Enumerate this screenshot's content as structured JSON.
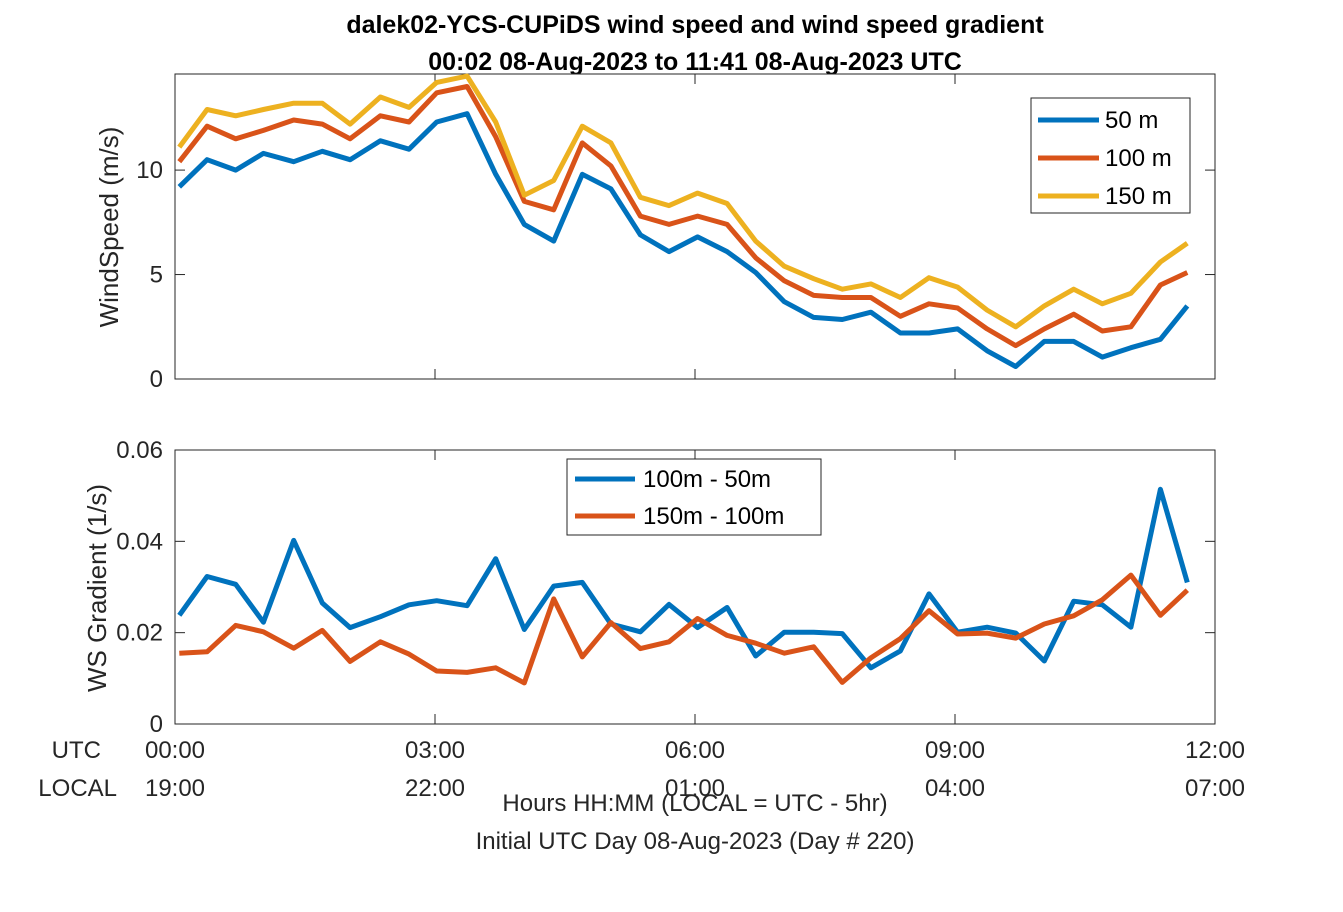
{
  "figure": {
    "title_line1": "dalek02-YCS-CUPiDS  wind speed and wind speed gradient",
    "title_line2": "00:02 08-Aug-2023 to 11:41 08-Aug-2023  UTC",
    "xlabel_line1": "Hours HH:MM  (LOCAL = UTC - 5hr)",
    "xlabel_line2": "Initial UTC Day 08-Aug-2023 (Day # 220)",
    "row_label_utc": "UTC",
    "row_label_local": "LOCAL"
  },
  "colors": {
    "series1": "#0072BD",
    "series2": "#D95319",
    "series3": "#EDB120",
    "axis": "#262626"
  },
  "chart_data": [
    {
      "type": "line",
      "title": "",
      "ylabel": "WindSpeed (m/s)",
      "xlabel": "",
      "xlim": [
        0,
        12
      ],
      "ylim": [
        0,
        14.6
      ],
      "x_ticks": [
        0,
        3,
        6,
        9,
        12
      ],
      "x_tick_labels_utc": [
        "00:00",
        "03:00",
        "06:00",
        "09:00",
        "12:00"
      ],
      "x_tick_labels_local": [
        "19:00",
        "22:00",
        "01:00",
        "04:00",
        "07:00"
      ],
      "y_ticks": [
        0,
        5,
        10
      ],
      "y_tick_labels": [
        "0",
        "5",
        "10"
      ],
      "grid": false,
      "legend_position": "top-right",
      "x": [
        0.05,
        0.37,
        0.7,
        1.02,
        1.37,
        1.7,
        2.02,
        2.37,
        2.7,
        3.02,
        3.37,
        3.7,
        4.03,
        4.37,
        4.7,
        5.03,
        5.37,
        5.7,
        6.03,
        6.37,
        6.7,
        7.03,
        7.37,
        7.7,
        8.03,
        8.37,
        8.7,
        9.03,
        9.37,
        9.7,
        10.03,
        10.37,
        10.7,
        11.03,
        11.37,
        11.68
      ],
      "series": [
        {
          "name": "50 m",
          "color": "#0072BD",
          "values": [
            9.2,
            10.5,
            10.0,
            10.8,
            10.4,
            10.9,
            10.5,
            11.4,
            11.0,
            12.3,
            12.7,
            9.8,
            7.4,
            6.6,
            9.8,
            9.1,
            6.9,
            6.1,
            6.8,
            6.1,
            5.1,
            3.7,
            2.95,
            2.85,
            3.2,
            2.2,
            2.2,
            2.4,
            1.35,
            0.6,
            1.8,
            1.8,
            1.05,
            1.5,
            1.9,
            3.5
          ]
        },
        {
          "name": "100 m",
          "color": "#D95319",
          "values": [
            10.4,
            12.1,
            11.5,
            11.9,
            12.4,
            12.2,
            11.5,
            12.6,
            12.3,
            13.7,
            14.0,
            11.6,
            8.5,
            8.1,
            11.3,
            10.2,
            7.8,
            7.4,
            7.8,
            7.4,
            5.8,
            4.7,
            4.0,
            3.9,
            3.9,
            3.0,
            3.6,
            3.4,
            2.4,
            1.6,
            2.4,
            3.1,
            2.3,
            2.5,
            4.5,
            5.1
          ]
        },
        {
          "name": "150 m",
          "color": "#EDB120",
          "values": [
            11.1,
            12.9,
            12.6,
            12.9,
            13.2,
            13.2,
            12.2,
            13.5,
            13.0,
            14.2,
            14.5,
            12.3,
            8.8,
            9.5,
            12.1,
            11.3,
            8.7,
            8.3,
            8.9,
            8.4,
            6.6,
            5.4,
            4.8,
            4.3,
            4.55,
            3.9,
            4.85,
            4.4,
            3.3,
            2.5,
            3.5,
            4.3,
            3.6,
            4.1,
            5.6,
            6.5
          ]
        }
      ]
    },
    {
      "type": "line",
      "title": "",
      "ylabel": "WS Gradient (1/s)",
      "xlabel": "",
      "xlim": [
        0,
        12
      ],
      "ylim": [
        0,
        0.06
      ],
      "x_ticks": [
        0,
        3,
        6,
        9,
        12
      ],
      "y_ticks": [
        0,
        0.02,
        0.04,
        0.06
      ],
      "y_tick_labels": [
        "0",
        "0.02",
        "0.04",
        "0.06"
      ],
      "grid": false,
      "legend_position": "top-center",
      "x": [
        0.05,
        0.37,
        0.7,
        1.02,
        1.37,
        1.7,
        2.02,
        2.37,
        2.7,
        3.02,
        3.37,
        3.7,
        4.03,
        4.37,
        4.7,
        5.03,
        5.37,
        5.7,
        6.03,
        6.37,
        6.7,
        7.03,
        7.37,
        7.7,
        8.03,
        8.37,
        8.7,
        9.03,
        9.37,
        9.7,
        10.03,
        10.37,
        10.7,
        11.03,
        11.37,
        11.68
      ],
      "series": [
        {
          "name": "100m - 50m",
          "color": "#0072BD",
          "values": [
            0.0238,
            0.0323,
            0.0306,
            0.0223,
            0.0402,
            0.0265,
            0.0211,
            0.0235,
            0.0261,
            0.027,
            0.0259,
            0.0362,
            0.0207,
            0.0302,
            0.031,
            0.0219,
            0.0202,
            0.0262,
            0.0211,
            0.0255,
            0.0149,
            0.0201,
            0.0201,
            0.0198,
            0.0123,
            0.016,
            0.0285,
            0.0201,
            0.0212,
            0.0199,
            0.0138,
            0.0269,
            0.0261,
            0.0212,
            0.0514,
            0.031
          ]
        },
        {
          "name": "150m - 100m",
          "color": "#D95319",
          "values": [
            0.0155,
            0.0158,
            0.0216,
            0.0202,
            0.0166,
            0.0205,
            0.0137,
            0.018,
            0.0153,
            0.0116,
            0.0113,
            0.0123,
            0.009,
            0.0274,
            0.0147,
            0.0222,
            0.0165,
            0.018,
            0.0231,
            0.0194,
            0.0177,
            0.0155,
            0.0169,
            0.0091,
            0.0145,
            0.0187,
            0.0248,
            0.0197,
            0.0199,
            0.0188,
            0.0219,
            0.0237,
            0.0272,
            0.0326,
            0.0238,
            0.0293
          ]
        }
      ]
    }
  ]
}
